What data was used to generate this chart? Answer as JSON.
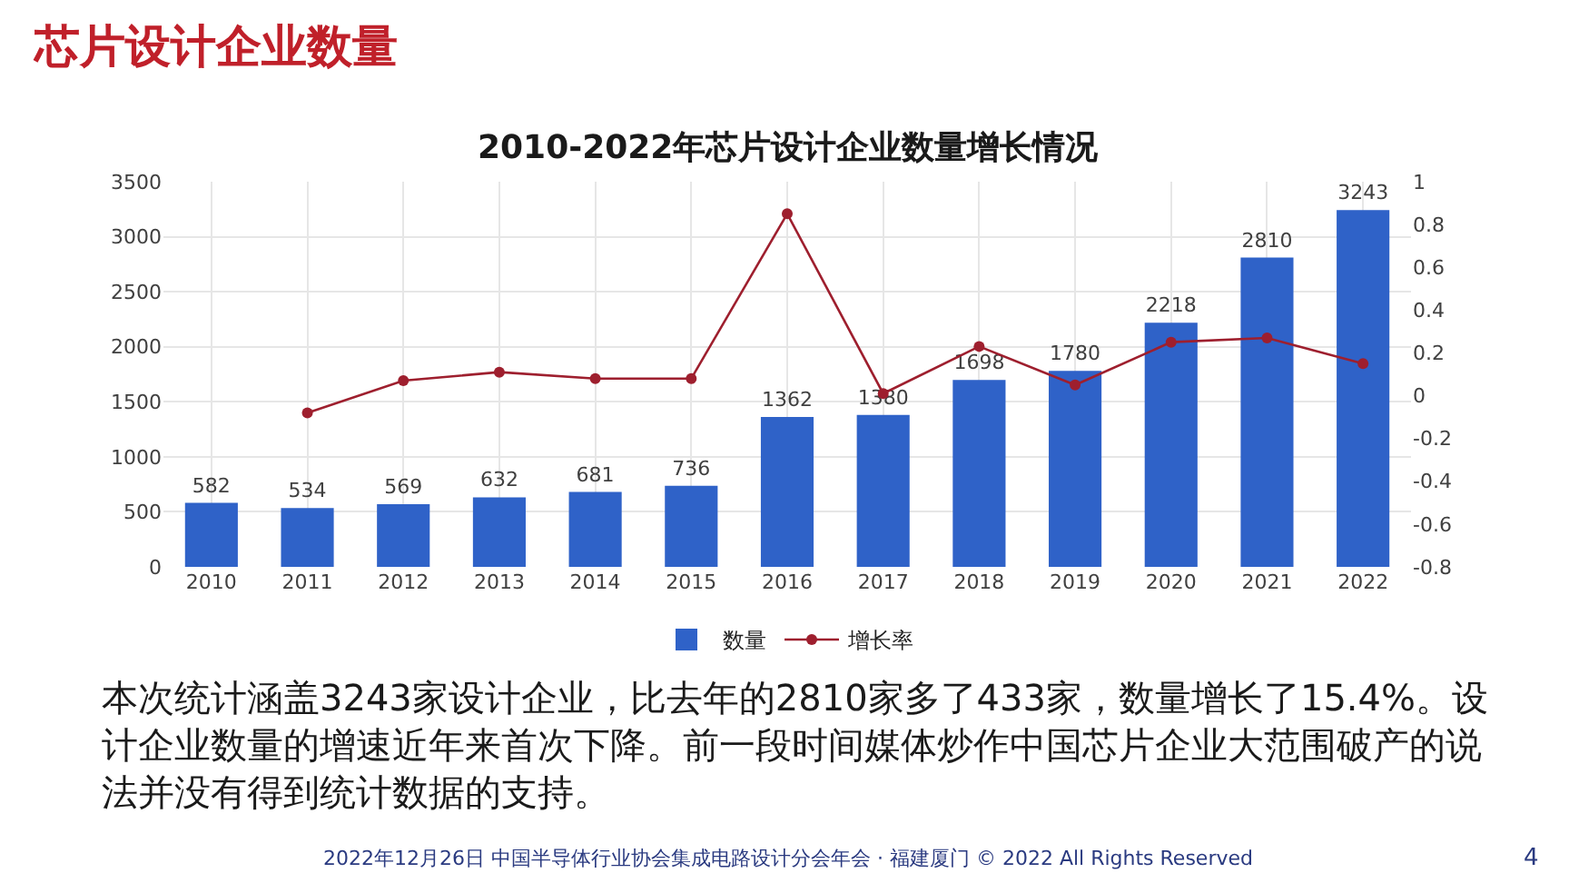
{
  "chart_data": {
    "type": "bar",
    "title": "芯片设计企业数量",
    "subtitle": "2010-2022年芯片设计企业数量增长情况",
    "categories": [
      "2010",
      "2011",
      "2012",
      "2013",
      "2014",
      "2015",
      "2016",
      "2017",
      "2018",
      "2019",
      "2020",
      "2021",
      "2022"
    ],
    "series": [
      {
        "name": "数量",
        "color": "#2f62c8",
        "values": [
          582,
          534,
          569,
          632,
          681,
          736,
          1362,
          1380,
          1698,
          1780,
          2218,
          2810,
          3243
        ],
        "value_labels": [
          "582",
          "534",
          "569",
          "632",
          "681",
          "736",
          "1362",
          "1380",
          "1698",
          "1780",
          "2218",
          "2810",
          "3243"
        ]
      },
      {
        "name": "增长率",
        "type": "line",
        "axis": "y2",
        "color": "#9e1f2e",
        "values": [
          null,
          -0.08,
          0.07,
          0.11,
          0.08,
          0.08,
          0.85,
          0.01,
          0.23,
          0.05,
          0.25,
          0.27,
          0.15
        ]
      }
    ],
    "ylim": [
      0,
      3500
    ],
    "yticks": [
      0,
      500,
      1000,
      1500,
      2000,
      2500,
      3000,
      3500
    ],
    "y2lim": [
      -0.8,
      1
    ],
    "y2ticks": [
      -0.8,
      -0.6,
      -0.4,
      -0.2,
      0,
      0.2,
      0.4,
      0.6,
      0.8,
      1
    ],
    "grid": true,
    "legend": "bottom",
    "marker": "circle",
    "line_style": "solid",
    "annotations": [
      "本次统计涵盖3243家设计企业，比去年的2810家多了433家，数量增长了15.4%。设计企业数量的增速近年来首次下降。前一段时间媒体炒作中国芯片企业大范围破产的说法并没有得到统计数据的支持。",
      "2022年12月26日 中国半导体行业协会集成电路设计分会年会 · 福建厦门 © 2022 All Rights Reserved",
      "4"
    ]
  }
}
